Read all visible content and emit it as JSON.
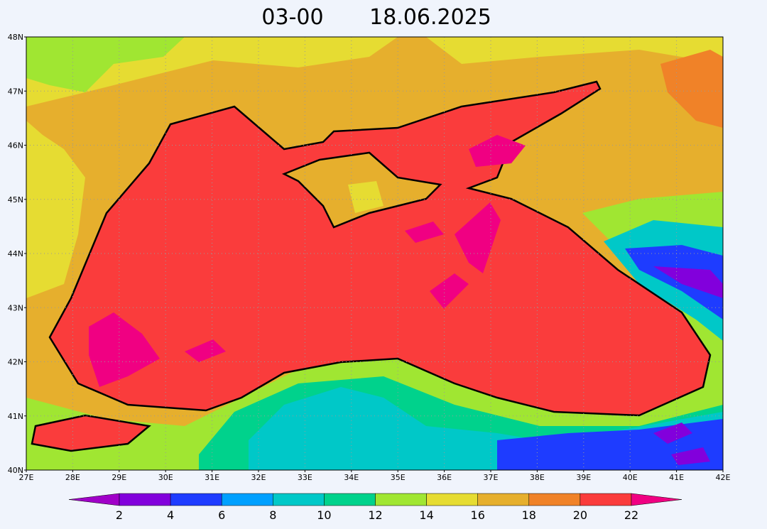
{
  "title": {
    "time": "03-00",
    "date": "18.06.2025"
  },
  "map": {
    "lat_labels": [
      "48N",
      "47N",
      "46N",
      "45N",
      "44N",
      "43N",
      "42N",
      "41N",
      "40N"
    ],
    "lon_labels": [
      "27E",
      "28E",
      "29E",
      "30E",
      "31E",
      "32E",
      "33E",
      "34E",
      "35E",
      "36E",
      "37E",
      "38E",
      "39E",
      "40E",
      "41E",
      "42E"
    ]
  },
  "colorbar": {
    "levels": [
      2,
      4,
      6,
      8,
      10,
      12,
      14,
      16,
      18,
      20,
      22
    ],
    "colors": [
      "#a000c8",
      "#8200dc",
      "#1e3cff",
      "#00a0ff",
      "#00c8c8",
      "#00d28c",
      "#a0e632",
      "#e6dc32",
      "#e6af2d",
      "#f08228",
      "#fa3c3c",
      "#f00082"
    ]
  }
}
